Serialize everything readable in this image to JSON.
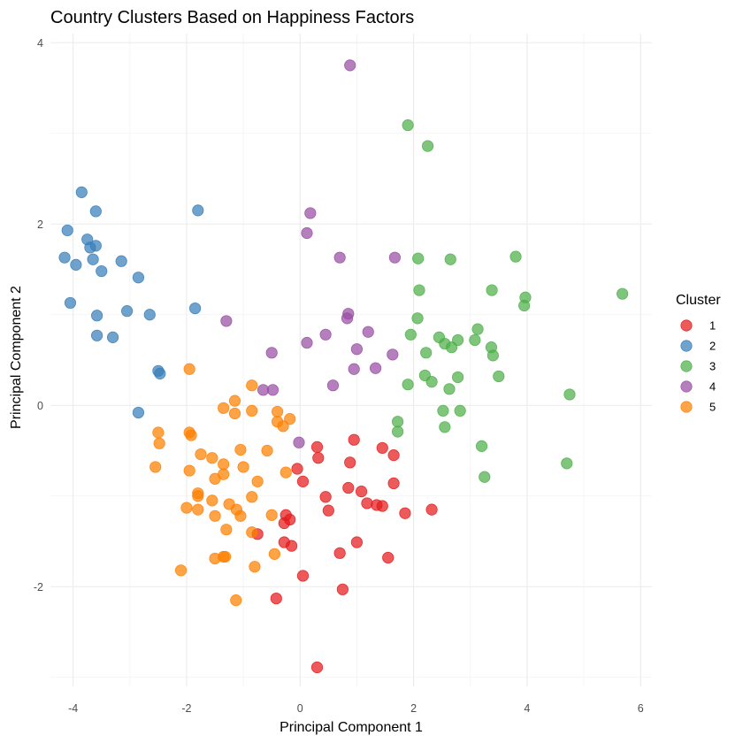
{
  "chart_data": {
    "type": "scatter",
    "title": "Country Clusters Based on Happiness Factors",
    "xlabel": "Principal Component 1",
    "ylabel": "Principal Component 2",
    "xlim": [
      -4.4,
      6.2
    ],
    "ylim": [
      -3.1,
      4.1
    ],
    "xticks": [
      -4,
      -2,
      0,
      2,
      4,
      6
    ],
    "yticks": [
      -2,
      0,
      2,
      4
    ],
    "grid": true,
    "legend": {
      "title": "Cluster",
      "placement": "right"
    },
    "series": [
      {
        "name": "1",
        "color": "#e41a1c",
        "points": [
          [
            0.3,
            -0.46
          ],
          [
            0.32,
            -0.58
          ],
          [
            0.95,
            -0.38
          ],
          [
            1.45,
            -0.47
          ],
          [
            1.65,
            -0.55
          ],
          [
            -0.05,
            -0.7
          ],
          [
            0.05,
            -0.84
          ],
          [
            0.88,
            -0.63
          ],
          [
            0.85,
            -0.91
          ],
          [
            1.08,
            -0.95
          ],
          [
            1.65,
            -0.86
          ],
          [
            0.45,
            -1.01
          ],
          [
            0.5,
            -1.16
          ],
          [
            1.18,
            -1.08
          ],
          [
            1.35,
            -1.1
          ],
          [
            1.45,
            -1.11
          ],
          [
            1.85,
            -1.19
          ],
          [
            2.32,
            -1.15
          ],
          [
            -0.25,
            -1.21
          ],
          [
            -0.18,
            -1.26
          ],
          [
            -0.28,
            -1.3
          ],
          [
            -0.75,
            -1.42
          ],
          [
            -0.28,
            -1.51
          ],
          [
            -0.15,
            -1.55
          ],
          [
            1.0,
            -1.51
          ],
          [
            0.7,
            -1.63
          ],
          [
            1.55,
            -1.68
          ],
          [
            0.05,
            -1.88
          ],
          [
            0.75,
            -2.03
          ],
          [
            -0.42,
            -2.13
          ],
          [
            0.3,
            -2.89
          ]
        ]
      },
      {
        "name": "2",
        "color": "#377eb8",
        "points": [
          [
            -3.85,
            2.35
          ],
          [
            -3.6,
            2.14
          ],
          [
            -1.8,
            2.15
          ],
          [
            -4.1,
            1.93
          ],
          [
            -3.75,
            1.83
          ],
          [
            -3.7,
            1.74
          ],
          [
            -3.6,
            1.76
          ],
          [
            -4.15,
            1.63
          ],
          [
            -3.65,
            1.61
          ],
          [
            -3.95,
            1.55
          ],
          [
            -3.15,
            1.59
          ],
          [
            -3.5,
            1.48
          ],
          [
            -2.85,
            1.41
          ],
          [
            -4.05,
            1.13
          ],
          [
            -3.05,
            1.04
          ],
          [
            -3.58,
            0.99
          ],
          [
            -2.65,
            1.0
          ],
          [
            -1.85,
            1.07
          ],
          [
            -3.3,
            0.75
          ],
          [
            -3.58,
            0.77
          ],
          [
            -2.5,
            0.38
          ],
          [
            -2.47,
            0.35
          ],
          [
            -2.85,
            -0.08
          ]
        ]
      },
      {
        "name": "3",
        "color": "#4daf4a",
        "points": [
          [
            1.9,
            3.09
          ],
          [
            2.25,
            2.86
          ],
          [
            2.08,
            1.62
          ],
          [
            2.65,
            1.61
          ],
          [
            3.8,
            1.64
          ],
          [
            2.1,
            1.27
          ],
          [
            3.38,
            1.27
          ],
          [
            5.68,
            1.23
          ],
          [
            3.97,
            1.19
          ],
          [
            3.95,
            1.1
          ],
          [
            2.07,
            0.96
          ],
          [
            3.13,
            0.84
          ],
          [
            1.95,
            0.78
          ],
          [
            2.45,
            0.75
          ],
          [
            2.78,
            0.72
          ],
          [
            2.55,
            0.68
          ],
          [
            2.67,
            0.64
          ],
          [
            3.08,
            0.72
          ],
          [
            3.37,
            0.64
          ],
          [
            3.4,
            0.55
          ],
          [
            2.22,
            0.58
          ],
          [
            2.2,
            0.33
          ],
          [
            2.32,
            0.26
          ],
          [
            1.9,
            0.23
          ],
          [
            2.63,
            0.18
          ],
          [
            2.78,
            0.31
          ],
          [
            3.5,
            0.32
          ],
          [
            4.75,
            0.12
          ],
          [
            2.52,
            -0.06
          ],
          [
            2.82,
            -0.06
          ],
          [
            1.72,
            -0.18
          ],
          [
            1.72,
            -0.29
          ],
          [
            2.55,
            -0.24
          ],
          [
            3.2,
            -0.45
          ],
          [
            4.7,
            -0.64
          ],
          [
            3.25,
            -0.79
          ]
        ]
      },
      {
        "name": "4",
        "color": "#984ea3",
        "points": [
          [
            0.88,
            3.75
          ],
          [
            0.18,
            2.12
          ],
          [
            0.12,
            1.9
          ],
          [
            0.7,
            1.63
          ],
          [
            1.67,
            1.63
          ],
          [
            0.85,
            1.01
          ],
          [
            0.83,
            0.96
          ],
          [
            -1.3,
            0.93
          ],
          [
            1.2,
            0.81
          ],
          [
            0.45,
            0.78
          ],
          [
            0.12,
            0.69
          ],
          [
            1.0,
            0.62
          ],
          [
            -0.5,
            0.58
          ],
          [
            1.63,
            0.56
          ],
          [
            0.95,
            0.4
          ],
          [
            1.33,
            0.41
          ],
          [
            0.58,
            0.22
          ],
          [
            -0.65,
            0.17
          ],
          [
            -0.48,
            0.17
          ],
          [
            -0.02,
            -0.41
          ]
        ]
      },
      {
        "name": "5",
        "color": "#ff7f00",
        "points": [
          [
            -1.95,
            0.4
          ],
          [
            -0.85,
            0.22
          ],
          [
            -1.15,
            0.05
          ],
          [
            -1.35,
            -0.03
          ],
          [
            -0.85,
            -0.06
          ],
          [
            -1.15,
            -0.09
          ],
          [
            -0.4,
            -0.07
          ],
          [
            -0.4,
            -0.18
          ],
          [
            -0.3,
            -0.23
          ],
          [
            -0.18,
            -0.15
          ],
          [
            -2.5,
            -0.3
          ],
          [
            -1.95,
            -0.3
          ],
          [
            -1.92,
            -0.33
          ],
          [
            -2.48,
            -0.42
          ],
          [
            -1.05,
            -0.49
          ],
          [
            -0.58,
            -0.5
          ],
          [
            -1.75,
            -0.54
          ],
          [
            -1.55,
            -0.58
          ],
          [
            -1.35,
            -0.65
          ],
          [
            -2.55,
            -0.68
          ],
          [
            -1.0,
            -0.68
          ],
          [
            -1.95,
            -0.72
          ],
          [
            -0.25,
            -0.74
          ],
          [
            -1.35,
            -0.76
          ],
          [
            -1.5,
            -0.81
          ],
          [
            -0.75,
            -0.84
          ],
          [
            -1.8,
            -0.97
          ],
          [
            -1.8,
            -1.0
          ],
          [
            -0.85,
            -1.01
          ],
          [
            -1.55,
            -1.05
          ],
          [
            -1.25,
            -1.09
          ],
          [
            -2.0,
            -1.13
          ],
          [
            -1.8,
            -1.15
          ],
          [
            -1.12,
            -1.15
          ],
          [
            -0.5,
            -1.21
          ],
          [
            -1.5,
            -1.22
          ],
          [
            -1.05,
            -1.22
          ],
          [
            -1.3,
            -1.37
          ],
          [
            -0.85,
            -1.4
          ],
          [
            -1.5,
            -1.69
          ],
          [
            -1.35,
            -1.67
          ],
          [
            -1.32,
            -1.67
          ],
          [
            -0.45,
            -1.64
          ],
          [
            -0.8,
            -1.78
          ],
          [
            -2.1,
            -1.82
          ],
          [
            -1.13,
            -2.15
          ]
        ]
      }
    ]
  }
}
